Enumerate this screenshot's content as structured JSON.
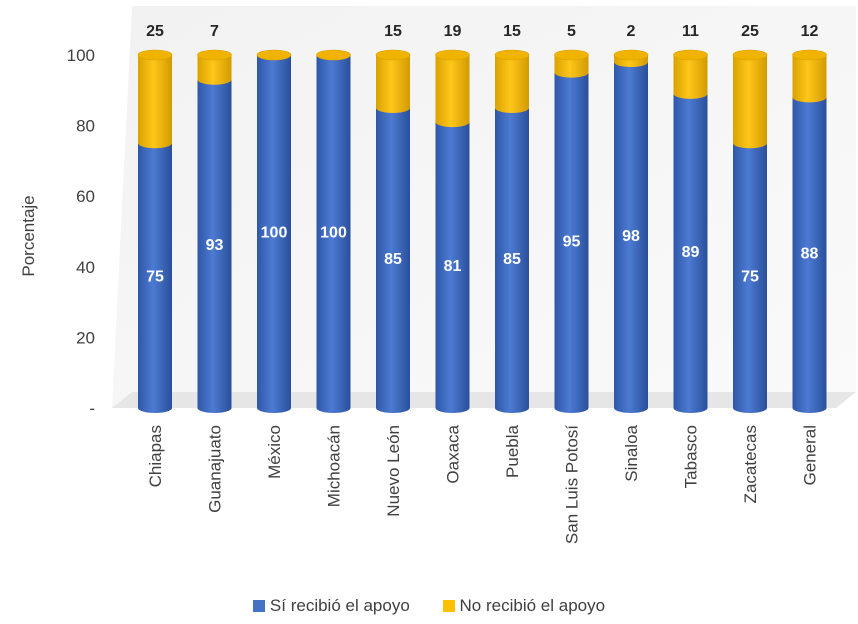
{
  "chart_data": {
    "type": "bar",
    "stacked": true,
    "ylabel": "Porcentaje",
    "ylim": [
      0,
      100
    ],
    "y_ticks": [
      "-",
      "20",
      "40",
      "60",
      "80",
      "100"
    ],
    "categories": [
      "Chiapas",
      "Guanajuato",
      "México",
      "Michoacán",
      "Nuevo León",
      "Oaxaca",
      "Puebla",
      "San Luis Potosí",
      "Sinaloa",
      "Tabasco",
      "Zacatecas",
      "General"
    ],
    "series": [
      {
        "name": "Sí recibió el apoyo",
        "color": "#4472C4",
        "values": [
          75,
          93,
          100,
          100,
          85,
          81,
          85,
          95,
          98,
          89,
          75,
          88
        ]
      },
      {
        "name": "No recibió el apoyo",
        "color": "#FFC000",
        "values": [
          25,
          7,
          null,
          null,
          15,
          19,
          15,
          5,
          2,
          11,
          25,
          12
        ]
      }
    ],
    "legend_position": "bottom",
    "grid": false
  }
}
